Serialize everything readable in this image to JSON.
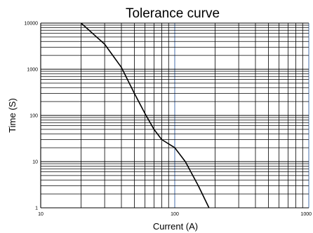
{
  "chart_data": {
    "type": "line",
    "title": "Tolerance curve",
    "xlabel": "Current (A)",
    "ylabel": "Time (S)",
    "xscale": "log",
    "yscale": "log",
    "xlim": [
      10,
      1000
    ],
    "ylim": [
      1,
      10000
    ],
    "x_ticks": [
      "10",
      "100",
      "1000"
    ],
    "y_ticks": [
      "1",
      "10",
      "100",
      "1000",
      "10000"
    ],
    "grid": true,
    "series": [
      {
        "x": [
          20,
          30,
          40,
          50,
          60,
          70,
          80,
          100,
          120,
          150,
          180
        ],
        "y": [
          10000,
          3500,
          1100,
          300,
          110,
          50,
          30,
          20,
          10,
          3,
          1
        ]
      }
    ]
  }
}
